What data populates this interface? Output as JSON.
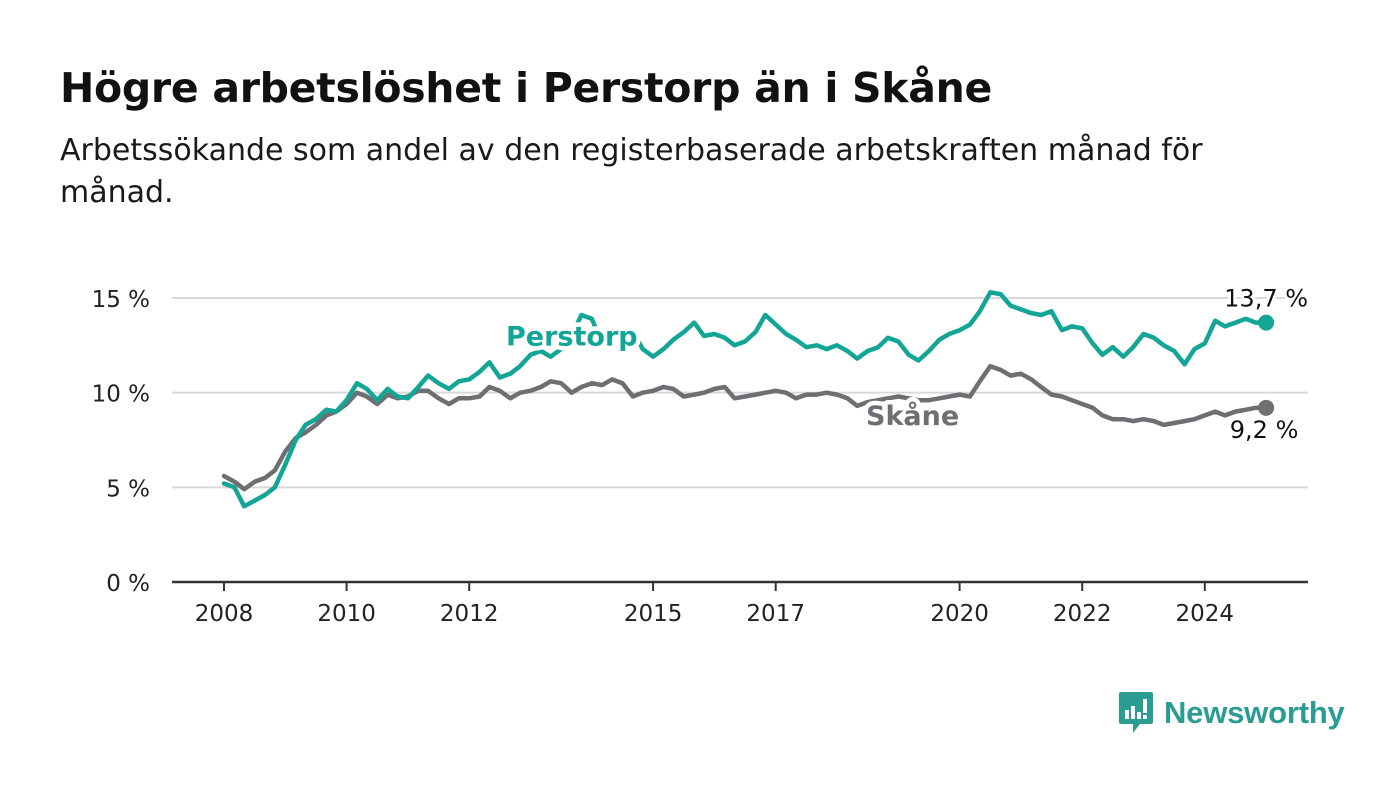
{
  "header": {
    "title": "Högre arbetslöshet i Perstorp än i Skåne",
    "subtitle": "Arbetssökande som andel av den registerbaserade arbetskraften månad för månad."
  },
  "brand": {
    "name": "Newsworthy",
    "icon": "newsworthy-logo-icon",
    "color": "#2a9d93"
  },
  "chart_data": {
    "type": "line",
    "title": "Högre arbetslöshet i Perstorp än i Skåne",
    "subtitle": "Arbetssökande som andel av den registerbaserade arbetskraften månad för månad.",
    "xlabel": "",
    "ylabel": "",
    "xlim": [
      2007.6,
      2025.7
    ],
    "ylim": [
      0,
      15
    ],
    "y_ticks": [
      0,
      5,
      10,
      15
    ],
    "y_tick_labels": [
      "0 %",
      "5 %",
      "10 %",
      "15 %"
    ],
    "x_ticks": [
      2008,
      2010,
      2012,
      2015,
      2017,
      2020,
      2022,
      2024
    ],
    "x_tick_labels": [
      "2008",
      "2010",
      "2012",
      "2015",
      "2017",
      "2020",
      "2022",
      "2024"
    ],
    "grid": true,
    "legend": "inline labels",
    "series": [
      {
        "name": "Perstorp",
        "color": "#13a596",
        "end_label": "13,7 %",
        "points": [
          [
            2008.0,
            5.2
          ],
          [
            2008.17,
            5.0
          ],
          [
            2008.33,
            4.0
          ],
          [
            2008.5,
            4.3
          ],
          [
            2008.67,
            4.6
          ],
          [
            2008.83,
            5.0
          ],
          [
            2009.0,
            6.2
          ],
          [
            2009.17,
            7.5
          ],
          [
            2009.33,
            8.3
          ],
          [
            2009.5,
            8.6
          ],
          [
            2009.67,
            9.1
          ],
          [
            2009.83,
            9.0
          ],
          [
            2010.0,
            9.6
          ],
          [
            2010.17,
            10.5
          ],
          [
            2010.33,
            10.2
          ],
          [
            2010.5,
            9.6
          ],
          [
            2010.67,
            10.2
          ],
          [
            2010.83,
            9.8
          ],
          [
            2011.0,
            9.7
          ],
          [
            2011.17,
            10.3
          ],
          [
            2011.33,
            10.9
          ],
          [
            2011.5,
            10.5
          ],
          [
            2011.67,
            10.2
          ],
          [
            2011.83,
            10.6
          ],
          [
            2012.0,
            10.7
          ],
          [
            2012.17,
            11.1
          ],
          [
            2012.33,
            11.6
          ],
          [
            2012.5,
            10.8
          ],
          [
            2012.67,
            11.0
          ],
          [
            2012.83,
            11.4
          ],
          [
            2013.0,
            12.0
          ],
          [
            2013.17,
            12.2
          ],
          [
            2013.33,
            11.9
          ],
          [
            2013.5,
            12.3
          ],
          [
            2013.67,
            13.0
          ],
          [
            2013.83,
            14.1
          ],
          [
            2014.0,
            13.9
          ],
          [
            2014.17,
            12.6
          ],
          [
            2014.33,
            12.8
          ],
          [
            2014.5,
            13.1
          ],
          [
            2014.67,
            13.3
          ],
          [
            2014.83,
            12.3
          ],
          [
            2015.0,
            11.9
          ],
          [
            2015.17,
            12.3
          ],
          [
            2015.33,
            12.8
          ],
          [
            2015.5,
            13.2
          ],
          [
            2015.67,
            13.7
          ],
          [
            2015.83,
            13.0
          ],
          [
            2016.0,
            13.1
          ],
          [
            2016.17,
            12.9
          ],
          [
            2016.33,
            12.5
          ],
          [
            2016.5,
            12.7
          ],
          [
            2016.67,
            13.2
          ],
          [
            2016.83,
            14.1
          ],
          [
            2017.0,
            13.6
          ],
          [
            2017.17,
            13.1
          ],
          [
            2017.33,
            12.8
          ],
          [
            2017.5,
            12.4
          ],
          [
            2017.67,
            12.5
          ],
          [
            2017.83,
            12.3
          ],
          [
            2018.0,
            12.5
          ],
          [
            2018.17,
            12.2
          ],
          [
            2018.33,
            11.8
          ],
          [
            2018.5,
            12.2
          ],
          [
            2018.67,
            12.4
          ],
          [
            2018.83,
            12.9
          ],
          [
            2019.0,
            12.7
          ],
          [
            2019.17,
            12.0
          ],
          [
            2019.33,
            11.7
          ],
          [
            2019.5,
            12.2
          ],
          [
            2019.67,
            12.8
          ],
          [
            2019.83,
            13.1
          ],
          [
            2020.0,
            13.3
          ],
          [
            2020.17,
            13.6
          ],
          [
            2020.33,
            14.3
          ],
          [
            2020.5,
            15.3
          ],
          [
            2020.67,
            15.2
          ],
          [
            2020.83,
            14.6
          ],
          [
            2021.0,
            14.4
          ],
          [
            2021.17,
            14.2
          ],
          [
            2021.33,
            14.1
          ],
          [
            2021.5,
            14.3
          ],
          [
            2021.67,
            13.3
          ],
          [
            2021.83,
            13.5
          ],
          [
            2022.0,
            13.4
          ],
          [
            2022.17,
            12.6
          ],
          [
            2022.33,
            12.0
          ],
          [
            2022.5,
            12.4
          ],
          [
            2022.67,
            11.9
          ],
          [
            2022.83,
            12.4
          ],
          [
            2023.0,
            13.1
          ],
          [
            2023.17,
            12.9
          ],
          [
            2023.33,
            12.5
          ],
          [
            2023.5,
            12.2
          ],
          [
            2023.67,
            11.5
          ],
          [
            2023.83,
            12.3
          ],
          [
            2024.0,
            12.6
          ],
          [
            2024.17,
            13.8
          ],
          [
            2024.33,
            13.5
          ],
          [
            2024.5,
            13.7
          ],
          [
            2024.67,
            13.9
          ],
          [
            2024.83,
            13.7
          ],
          [
            2025.0,
            13.7
          ]
        ]
      },
      {
        "name": "Skåne",
        "color": "#6e6e73",
        "end_label": "9,2 %",
        "points": [
          [
            2008.0,
            5.6
          ],
          [
            2008.17,
            5.3
          ],
          [
            2008.33,
            4.9
          ],
          [
            2008.5,
            5.3
          ],
          [
            2008.67,
            5.5
          ],
          [
            2008.83,
            5.9
          ],
          [
            2009.0,
            6.9
          ],
          [
            2009.17,
            7.6
          ],
          [
            2009.33,
            7.9
          ],
          [
            2009.5,
            8.3
          ],
          [
            2009.67,
            8.8
          ],
          [
            2009.83,
            9.0
          ],
          [
            2010.0,
            9.4
          ],
          [
            2010.17,
            10.0
          ],
          [
            2010.33,
            9.8
          ],
          [
            2010.5,
            9.4
          ],
          [
            2010.67,
            9.9
          ],
          [
            2010.83,
            9.7
          ],
          [
            2011.0,
            9.8
          ],
          [
            2011.17,
            10.1
          ],
          [
            2011.33,
            10.1
          ],
          [
            2011.5,
            9.7
          ],
          [
            2011.67,
            9.4
          ],
          [
            2011.83,
            9.7
          ],
          [
            2012.0,
            9.7
          ],
          [
            2012.17,
            9.8
          ],
          [
            2012.33,
            10.3
          ],
          [
            2012.5,
            10.1
          ],
          [
            2012.67,
            9.7
          ],
          [
            2012.83,
            10.0
          ],
          [
            2013.0,
            10.1
          ],
          [
            2013.17,
            10.3
          ],
          [
            2013.33,
            10.6
          ],
          [
            2013.5,
            10.5
          ],
          [
            2013.67,
            10.0
          ],
          [
            2013.83,
            10.3
          ],
          [
            2014.0,
            10.5
          ],
          [
            2014.17,
            10.4
          ],
          [
            2014.33,
            10.7
          ],
          [
            2014.5,
            10.5
          ],
          [
            2014.67,
            9.8
          ],
          [
            2014.83,
            10.0
          ],
          [
            2015.0,
            10.1
          ],
          [
            2015.17,
            10.3
          ],
          [
            2015.33,
            10.2
          ],
          [
            2015.5,
            9.8
          ],
          [
            2015.67,
            9.9
          ],
          [
            2015.83,
            10.0
          ],
          [
            2016.0,
            10.2
          ],
          [
            2016.17,
            10.3
          ],
          [
            2016.33,
            9.7
          ],
          [
            2016.5,
            9.8
          ],
          [
            2016.67,
            9.9
          ],
          [
            2016.83,
            10.0
          ],
          [
            2017.0,
            10.1
          ],
          [
            2017.17,
            10.0
          ],
          [
            2017.33,
            9.7
          ],
          [
            2017.5,
            9.9
          ],
          [
            2017.67,
            9.9
          ],
          [
            2017.83,
            10.0
          ],
          [
            2018.0,
            9.9
          ],
          [
            2018.17,
            9.7
          ],
          [
            2018.33,
            9.3
          ],
          [
            2018.5,
            9.5
          ],
          [
            2018.67,
            9.6
          ],
          [
            2018.83,
            9.7
          ],
          [
            2019.0,
            9.8
          ],
          [
            2019.17,
            9.7
          ],
          [
            2019.33,
            9.6
          ],
          [
            2019.5,
            9.6
          ],
          [
            2019.67,
            9.7
          ],
          [
            2019.83,
            9.8
          ],
          [
            2020.0,
            9.9
          ],
          [
            2020.17,
            9.8
          ],
          [
            2020.33,
            10.6
          ],
          [
            2020.5,
            11.4
          ],
          [
            2020.67,
            11.2
          ],
          [
            2020.83,
            10.9
          ],
          [
            2021.0,
            11.0
          ],
          [
            2021.17,
            10.7
          ],
          [
            2021.33,
            10.3
          ],
          [
            2021.5,
            9.9
          ],
          [
            2021.67,
            9.8
          ],
          [
            2021.83,
            9.6
          ],
          [
            2022.0,
            9.4
          ],
          [
            2022.17,
            9.2
          ],
          [
            2022.33,
            8.8
          ],
          [
            2022.5,
            8.6
          ],
          [
            2022.67,
            8.6
          ],
          [
            2022.83,
            8.5
          ],
          [
            2023.0,
            8.6
          ],
          [
            2023.17,
            8.5
          ],
          [
            2023.33,
            8.3
          ],
          [
            2023.5,
            8.4
          ],
          [
            2023.67,
            8.5
          ],
          [
            2023.83,
            8.6
          ],
          [
            2024.0,
            8.8
          ],
          [
            2024.17,
            9.0
          ],
          [
            2024.33,
            8.8
          ],
          [
            2024.5,
            9.0
          ],
          [
            2024.67,
            9.1
          ],
          [
            2024.83,
            9.2
          ],
          [
            2025.0,
            9.2
          ]
        ]
      }
    ]
  }
}
